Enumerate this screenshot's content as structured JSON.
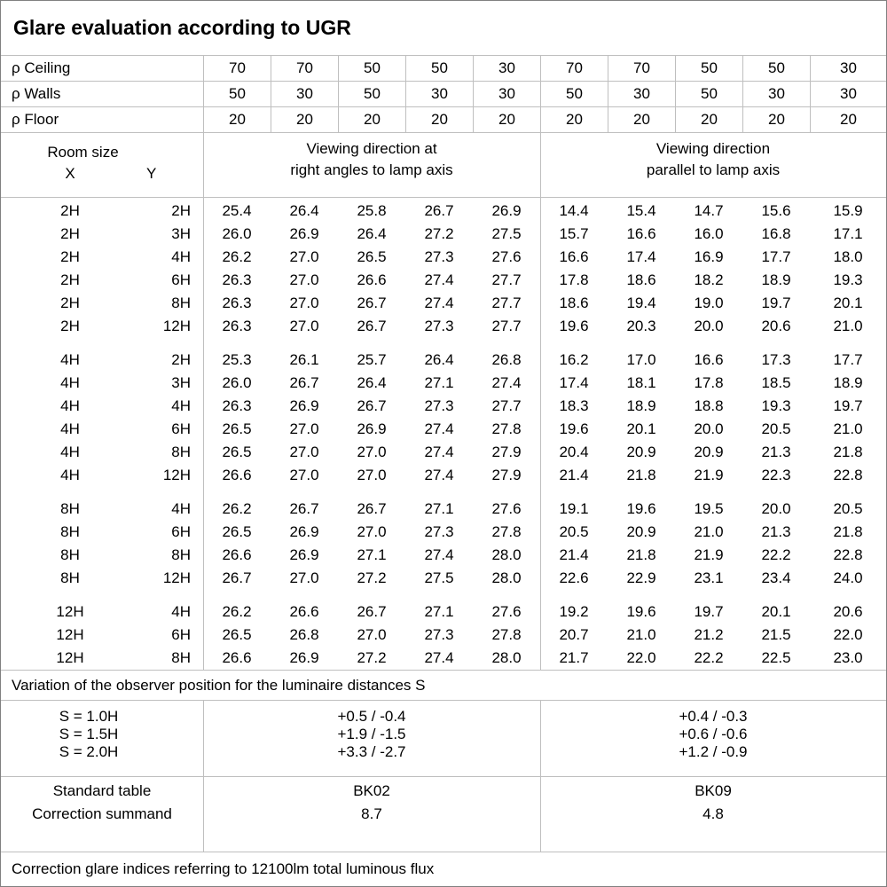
{
  "title": "Glare evaluation according to UGR",
  "reflectance_rows": [
    {
      "label": "ρ Ceiling",
      "values": [
        "70",
        "70",
        "50",
        "50",
        "30",
        "70",
        "70",
        "50",
        "50",
        "30"
      ]
    },
    {
      "label": "ρ Walls",
      "values": [
        "50",
        "30",
        "50",
        "30",
        "30",
        "50",
        "30",
        "50",
        "30",
        "30"
      ]
    },
    {
      "label": "ρ Floor",
      "values": [
        "20",
        "20",
        "20",
        "20",
        "20",
        "20",
        "20",
        "20",
        "20",
        "20"
      ]
    }
  ],
  "header": {
    "room_size_label": "Room size",
    "x_label": "X",
    "y_label": "Y",
    "right_angles_title": "Viewing direction at\nright angles to lamp axis",
    "parallel_title": "Viewing direction\nparallel to lamp axis"
  },
  "ugr_blocks": [
    {
      "rows": [
        {
          "x": "2H",
          "y": "2H",
          "right_angles": [
            "25.4",
            "26.4",
            "25.8",
            "26.7",
            "26.9"
          ],
          "parallel": [
            "14.4",
            "15.4",
            "14.7",
            "15.6",
            "15.9"
          ]
        },
        {
          "x": "2H",
          "y": "3H",
          "right_angles": [
            "26.0",
            "26.9",
            "26.4",
            "27.2",
            "27.5"
          ],
          "parallel": [
            "15.7",
            "16.6",
            "16.0",
            "16.8",
            "17.1"
          ]
        },
        {
          "x": "2H",
          "y": "4H",
          "right_angles": [
            "26.2",
            "27.0",
            "26.5",
            "27.3",
            "27.6"
          ],
          "parallel": [
            "16.6",
            "17.4",
            "16.9",
            "17.7",
            "18.0"
          ]
        },
        {
          "x": "2H",
          "y": "6H",
          "right_angles": [
            "26.3",
            "27.0",
            "26.6",
            "27.4",
            "27.7"
          ],
          "parallel": [
            "17.8",
            "18.6",
            "18.2",
            "18.9",
            "19.3"
          ]
        },
        {
          "x": "2H",
          "y": "8H",
          "right_angles": [
            "26.3",
            "27.0",
            "26.7",
            "27.4",
            "27.7"
          ],
          "parallel": [
            "18.6",
            "19.4",
            "19.0",
            "19.7",
            "20.1"
          ]
        },
        {
          "x": "2H",
          "y": "12H",
          "right_angles": [
            "26.3",
            "27.0",
            "26.7",
            "27.3",
            "27.7"
          ],
          "parallel": [
            "19.6",
            "20.3",
            "20.0",
            "20.6",
            "21.0"
          ]
        }
      ]
    },
    {
      "rows": [
        {
          "x": "4H",
          "y": "2H",
          "right_angles": [
            "25.3",
            "26.1",
            "25.7",
            "26.4",
            "26.8"
          ],
          "parallel": [
            "16.2",
            "17.0",
            "16.6",
            "17.3",
            "17.7"
          ]
        },
        {
          "x": "4H",
          "y": "3H",
          "right_angles": [
            "26.0",
            "26.7",
            "26.4",
            "27.1",
            "27.4"
          ],
          "parallel": [
            "17.4",
            "18.1",
            "17.8",
            "18.5",
            "18.9"
          ]
        },
        {
          "x": "4H",
          "y": "4H",
          "right_angles": [
            "26.3",
            "26.9",
            "26.7",
            "27.3",
            "27.7"
          ],
          "parallel": [
            "18.3",
            "18.9",
            "18.8",
            "19.3",
            "19.7"
          ]
        },
        {
          "x": "4H",
          "y": "6H",
          "right_angles": [
            "26.5",
            "27.0",
            "26.9",
            "27.4",
            "27.8"
          ],
          "parallel": [
            "19.6",
            "20.1",
            "20.0",
            "20.5",
            "21.0"
          ]
        },
        {
          "x": "4H",
          "y": "8H",
          "right_angles": [
            "26.5",
            "27.0",
            "27.0",
            "27.4",
            "27.9"
          ],
          "parallel": [
            "20.4",
            "20.9",
            "20.9",
            "21.3",
            "21.8"
          ]
        },
        {
          "x": "4H",
          "y": "12H",
          "right_angles": [
            "26.6",
            "27.0",
            "27.0",
            "27.4",
            "27.9"
          ],
          "parallel": [
            "21.4",
            "21.8",
            "21.9",
            "22.3",
            "22.8"
          ]
        }
      ]
    },
    {
      "rows": [
        {
          "x": "8H",
          "y": "4H",
          "right_angles": [
            "26.2",
            "26.7",
            "26.7",
            "27.1",
            "27.6"
          ],
          "parallel": [
            "19.1",
            "19.6",
            "19.5",
            "20.0",
            "20.5"
          ]
        },
        {
          "x": "8H",
          "y": "6H",
          "right_angles": [
            "26.5",
            "26.9",
            "27.0",
            "27.3",
            "27.8"
          ],
          "parallel": [
            "20.5",
            "20.9",
            "21.0",
            "21.3",
            "21.8"
          ]
        },
        {
          "x": "8H",
          "y": "8H",
          "right_angles": [
            "26.6",
            "26.9",
            "27.1",
            "27.4",
            "28.0"
          ],
          "parallel": [
            "21.4",
            "21.8",
            "21.9",
            "22.2",
            "22.8"
          ]
        },
        {
          "x": "8H",
          "y": "12H",
          "right_angles": [
            "26.7",
            "27.0",
            "27.2",
            "27.5",
            "28.0"
          ],
          "parallel": [
            "22.6",
            "22.9",
            "23.1",
            "23.4",
            "24.0"
          ]
        }
      ]
    },
    {
      "rows": [
        {
          "x": "12H",
          "y": "4H",
          "right_angles": [
            "26.2",
            "26.6",
            "26.7",
            "27.1",
            "27.6"
          ],
          "parallel": [
            "19.2",
            "19.6",
            "19.7",
            "20.1",
            "20.6"
          ]
        },
        {
          "x": "12H",
          "y": "6H",
          "right_angles": [
            "26.5",
            "26.8",
            "27.0",
            "27.3",
            "27.8"
          ],
          "parallel": [
            "20.7",
            "21.0",
            "21.2",
            "21.5",
            "22.0"
          ]
        },
        {
          "x": "12H",
          "y": "8H",
          "right_angles": [
            "26.6",
            "26.9",
            "27.2",
            "27.4",
            "28.0"
          ],
          "parallel": [
            "21.7",
            "22.0",
            "22.2",
            "22.5",
            "23.0"
          ]
        }
      ]
    }
  ],
  "variation": {
    "caption": "Variation of the observer position for the luminaire distances S",
    "rows": [
      {
        "s": "S = 1.0H",
        "right_angles": "+0.5 / -0.4",
        "parallel": "+0.4 / -0.3"
      },
      {
        "s": "S = 1.5H",
        "right_angles": "+1.9 / -1.5",
        "parallel": "+0.6 / -0.6"
      },
      {
        "s": "S = 2.0H",
        "right_angles": "+3.3 / -2.7",
        "parallel": "+1.2 / -0.9"
      }
    ]
  },
  "standard": {
    "table_label": "Standard table",
    "summand_label": "Correction summand",
    "right_angles": {
      "table": "BK02",
      "summand": "8.7"
    },
    "parallel": {
      "table": "BK09",
      "summand": "4.8"
    }
  },
  "footer": "Correction glare indices referring to 12100lm total luminous flux",
  "colors": {
    "text": "#000000",
    "grid_line": "#bfbfbf",
    "outer_border": "#808080",
    "background": "#ffffff"
  }
}
